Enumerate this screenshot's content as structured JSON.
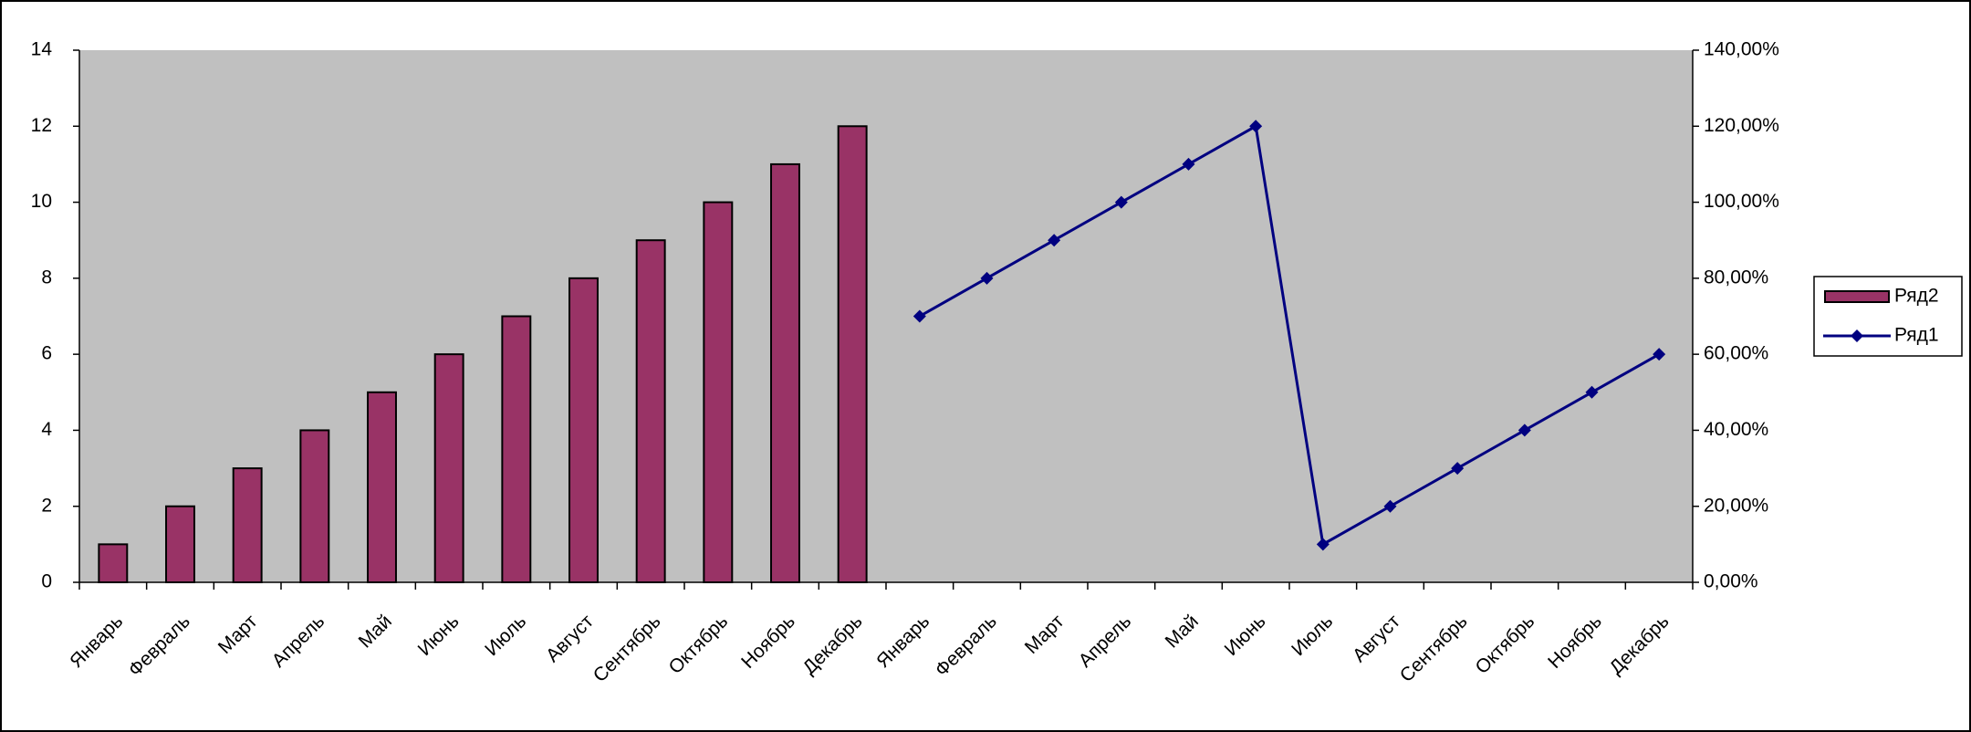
{
  "chart_data": {
    "type": "combo",
    "categories": [
      "Январь",
      "Февраль",
      "Март",
      "Апрель",
      "Май",
      "Июнь",
      "Июль",
      "Август",
      "Сентябрь",
      "Октябрь",
      "Ноябрь",
      "Декабрь",
      "Январь",
      "Февраль",
      "Март",
      "Апрель",
      "Май",
      "Июнь",
      "Июль",
      "Август",
      "Сентябрь",
      "Октябрь",
      "Ноябрь",
      "Декабрь"
    ],
    "series": [
      {
        "name": "Ряд2",
        "type": "bar",
        "color": "#993366",
        "values": [
          1,
          2,
          3,
          4,
          5,
          6,
          7,
          8,
          9,
          10,
          11,
          12,
          null,
          null,
          null,
          null,
          null,
          null,
          null,
          null,
          null,
          null,
          null,
          null
        ]
      },
      {
        "name": "Ряд1",
        "type": "line",
        "axis": "y2",
        "color": "#000080",
        "values": [
          null,
          null,
          null,
          null,
          null,
          null,
          null,
          null,
          null,
          null,
          null,
          null,
          70,
          80,
          90,
          100,
          110,
          120,
          10,
          20,
          30,
          40,
          50,
          60
        ]
      }
    ],
    "ylim": [
      0,
      14
    ],
    "yticks": [
      0,
      2,
      4,
      6,
      8,
      10,
      12,
      14
    ],
    "y2lim": [
      0,
      140
    ],
    "y2ticks": [
      {
        "value": 0,
        "label": "0,00%"
      },
      {
        "value": 20,
        "label": "20,00%"
      },
      {
        "value": 40,
        "label": "40,00%"
      },
      {
        "value": 60,
        "label": "60,00%"
      },
      {
        "value": 80,
        "label": "80,00%"
      },
      {
        "value": 100,
        "label": "100,00%"
      },
      {
        "value": 120,
        "label": "120,00%"
      },
      {
        "value": 140,
        "label": "140,00%"
      }
    ],
    "grid": false,
    "legend": "right"
  }
}
